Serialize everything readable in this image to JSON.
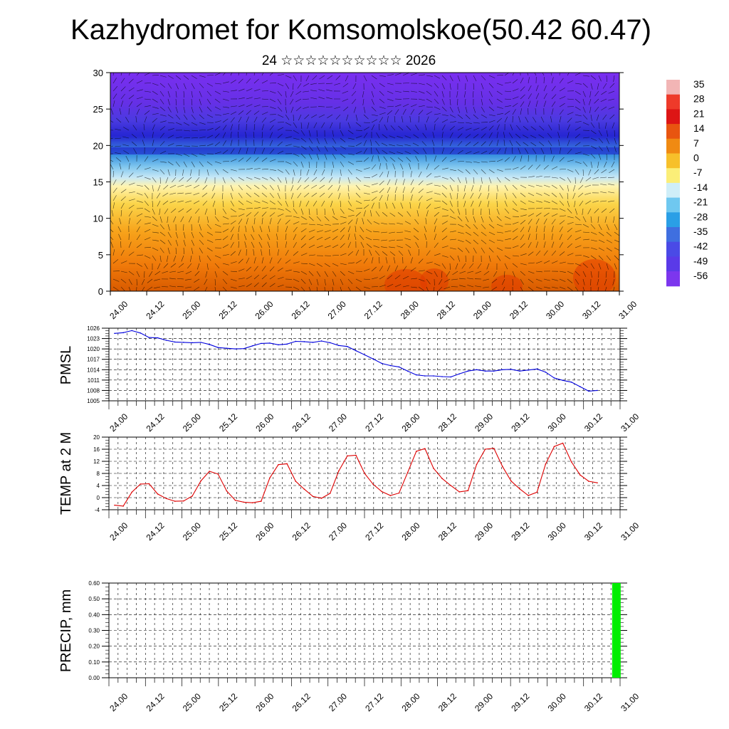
{
  "title": "Kazhydromet for Komsomolskoe(50.42 60.47)",
  "subtitle": "24 ☆☆☆☆☆☆☆☆☆☆ 2026",
  "time_labels": [
    "24.00",
    "24.12",
    "25.00",
    "25.12",
    "26.00",
    "26.12",
    "27.00",
    "27.12",
    "28.00",
    "28.12",
    "29.00",
    "29.12",
    "30.00",
    "30.12",
    "31.00"
  ],
  "colors": {
    "pmsl_line": "#0000dd",
    "temp_line": "#dd0000",
    "precip_bar": "#00ee00",
    "grid": "#000000"
  },
  "chart_data": [
    {
      "type": "heatmap",
      "name": "vertical-cross-section",
      "xlabel": "",
      "ylabel": "",
      "ylim": [
        0,
        30
      ],
      "yticks": [
        0,
        5,
        10,
        15,
        20,
        25,
        30
      ],
      "colorbar": {
        "labels": [
          "35",
          "28",
          "21",
          "14",
          "7",
          "0",
          "-7",
          "-14",
          "-21",
          "-28",
          "-35",
          "-42",
          "-49",
          "-56"
        ]
      },
      "description_levels": [
        0,
        5,
        10,
        15,
        20,
        25,
        30
      ],
      "overlay": "wind vectors"
    },
    {
      "type": "line",
      "name": "pmsl",
      "ylabel": "PMSL",
      "ylim": [
        1005,
        1026
      ],
      "yticks": [
        1005,
        1008,
        1011,
        1014,
        1017,
        1020,
        1023,
        1026
      ],
      "x": [
        0,
        1,
        2,
        3,
        4,
        5,
        6,
        7,
        8,
        9,
        10,
        11,
        12,
        13,
        14,
        15,
        16,
        17,
        18,
        19,
        20,
        21,
        22,
        23,
        24,
        25,
        26,
        27,
        28,
        29,
        30,
        31,
        32,
        33,
        34,
        35,
        36,
        37,
        38,
        39,
        40,
        41,
        42,
        43,
        44,
        45,
        46,
        47,
        48,
        49,
        50,
        51,
        52,
        53,
        54,
        55,
        56
      ],
      "values": [
        1024.5,
        1024.7,
        1025.3,
        1024.6,
        1023.3,
        1023.2,
        1022.5,
        1022.0,
        1021.9,
        1021.8,
        1021.9,
        1021.3,
        1020.4,
        1020.2,
        1020.0,
        1020.1,
        1020.9,
        1021.6,
        1021.7,
        1021.2,
        1021.4,
        1022.2,
        1022.1,
        1021.9,
        1022.3,
        1021.8,
        1021.0,
        1020.7,
        1019.5,
        1018.3,
        1017.1,
        1015.8,
        1015.2,
        1014.8,
        1013.6,
        1012.5,
        1012.2,
        1012.2,
        1012.0,
        1011.9,
        1012.8,
        1013.6,
        1014.0,
        1013.6,
        1013.6,
        1014.0,
        1014.1,
        1013.6,
        1013.9,
        1014.2,
        1013.3,
        1011.6,
        1010.9,
        1010.4,
        1009.1,
        1007.8,
        1008.0
      ]
    },
    {
      "type": "line",
      "name": "temp-2m",
      "ylabel": "TEMP at 2 M",
      "ylim": [
        -4,
        20
      ],
      "yticks": [
        -4,
        0,
        4,
        8,
        12,
        16,
        20
      ],
      "x": [
        0,
        1,
        2,
        3,
        4,
        5,
        6,
        7,
        8,
        9,
        10,
        11,
        12,
        13,
        14,
        15,
        16,
        17,
        18,
        19,
        20,
        21,
        22,
        23,
        24,
        25,
        26,
        27,
        28,
        29,
        30,
        31,
        32,
        33,
        34,
        35,
        36,
        37,
        38,
        39,
        40,
        41,
        42,
        43,
        44,
        45,
        46,
        47,
        48,
        49,
        50,
        51,
        52,
        53,
        54,
        55,
        56
      ],
      "values": [
        -2.5,
        -2.8,
        1.8,
        4.5,
        4.6,
        1.2,
        -0.3,
        -1.2,
        -1.1,
        0.5,
        5.5,
        8.7,
        7.8,
        2.2,
        -0.9,
        -1.5,
        -1.7,
        -1.2,
        6.5,
        10.9,
        11.2,
        5.4,
        2.8,
        0.4,
        -0.2,
        1.4,
        8.8,
        13.8,
        14.0,
        8.0,
        4.4,
        2.0,
        0.7,
        1.5,
        8.3,
        15.3,
        16.2,
        9.7,
        6.3,
        4.0,
        1.9,
        2.3,
        11.0,
        16.0,
        16.3,
        10.3,
        5.5,
        2.9,
        0.7,
        1.8,
        11.1,
        16.9,
        18.0,
        11.8,
        7.5,
        5.4,
        4.9
      ]
    },
    {
      "type": "bar",
      "name": "precip",
      "ylabel": "PRECIP, mm",
      "ylim": [
        0,
        0.6
      ],
      "yticks": [
        "0.00",
        "0.10",
        "0.20",
        "0.30",
        "0.40",
        "0.50",
        "0.60"
      ],
      "bars": [
        {
          "x": 55.6,
          "value": 0.6
        }
      ]
    }
  ]
}
